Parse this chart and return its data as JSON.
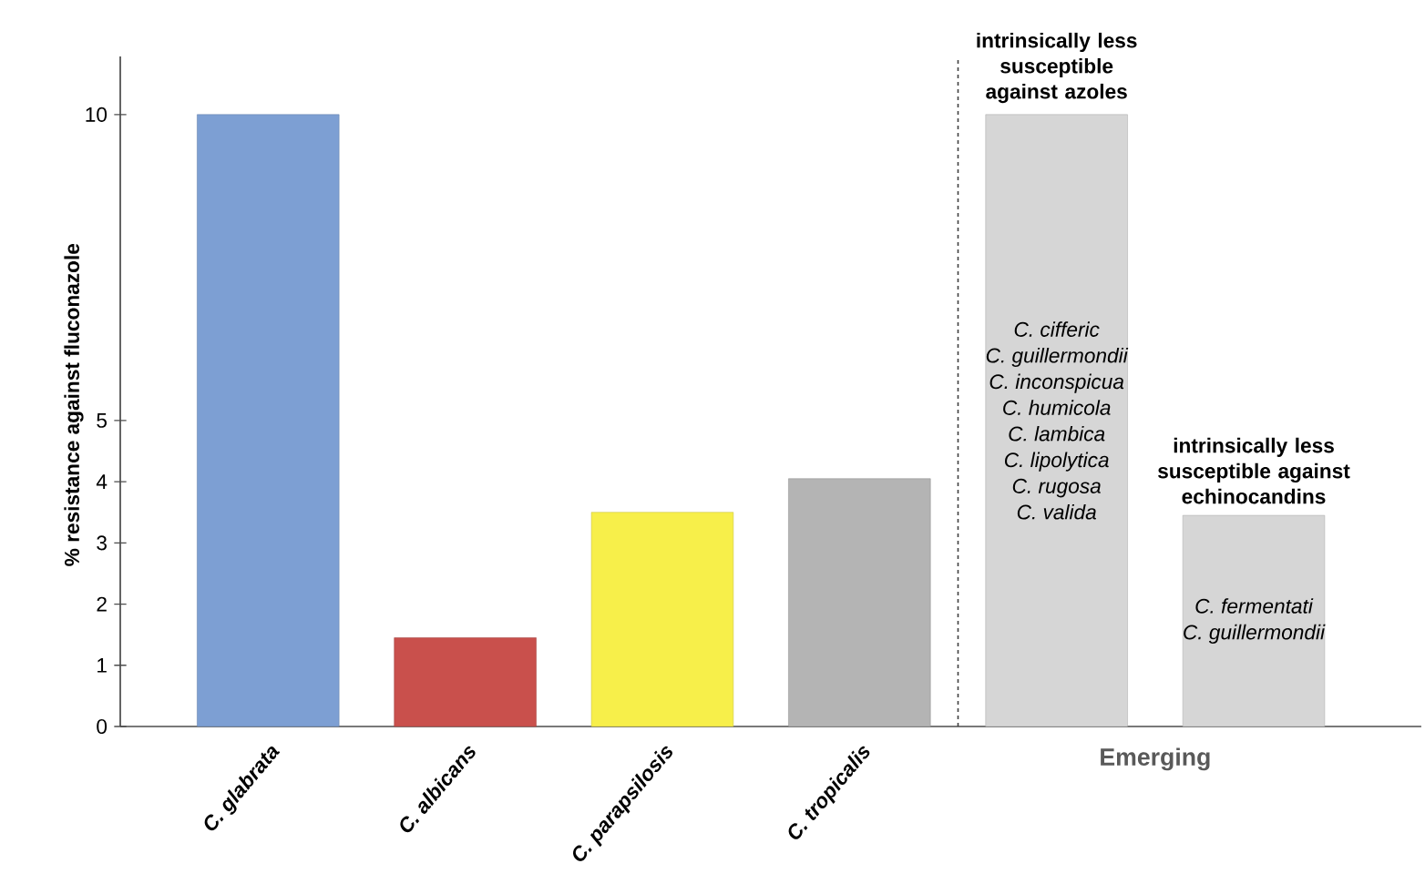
{
  "chart_data": {
    "type": "bar",
    "categories": [
      "C. glabrata",
      "C. albicans",
      "C. parapsilosis",
      "C. tropicalis",
      null,
      null
    ],
    "values": [
      10,
      1.45,
      3.5,
      4.05,
      10,
      3.45
    ],
    "colors": [
      "#7d9fd3",
      "#c9504c",
      "#f7ef4a",
      "#b4b4b4",
      "#d6d6d6",
      "#d6d6d6"
    ],
    "ylim": [
      0,
      10.95
    ],
    "yticks": [
      0,
      1,
      2,
      3,
      4,
      5,
      10
    ],
    "xlabel": "Emerging",
    "ylabel": "% resistance against fluconazole",
    "annotations": [
      "intrinsically less susceptible against azoles",
      "C. cifferic",
      "C. guillermondii",
      "C. inconspicua",
      "C. humicola",
      "C. lambica",
      "C. lipolytica",
      "C. rugosa",
      "C. valida",
      "intrinsically less susceptible against echinocandins",
      "C. fermentati",
      "C. guillermondii"
    ]
  }
}
